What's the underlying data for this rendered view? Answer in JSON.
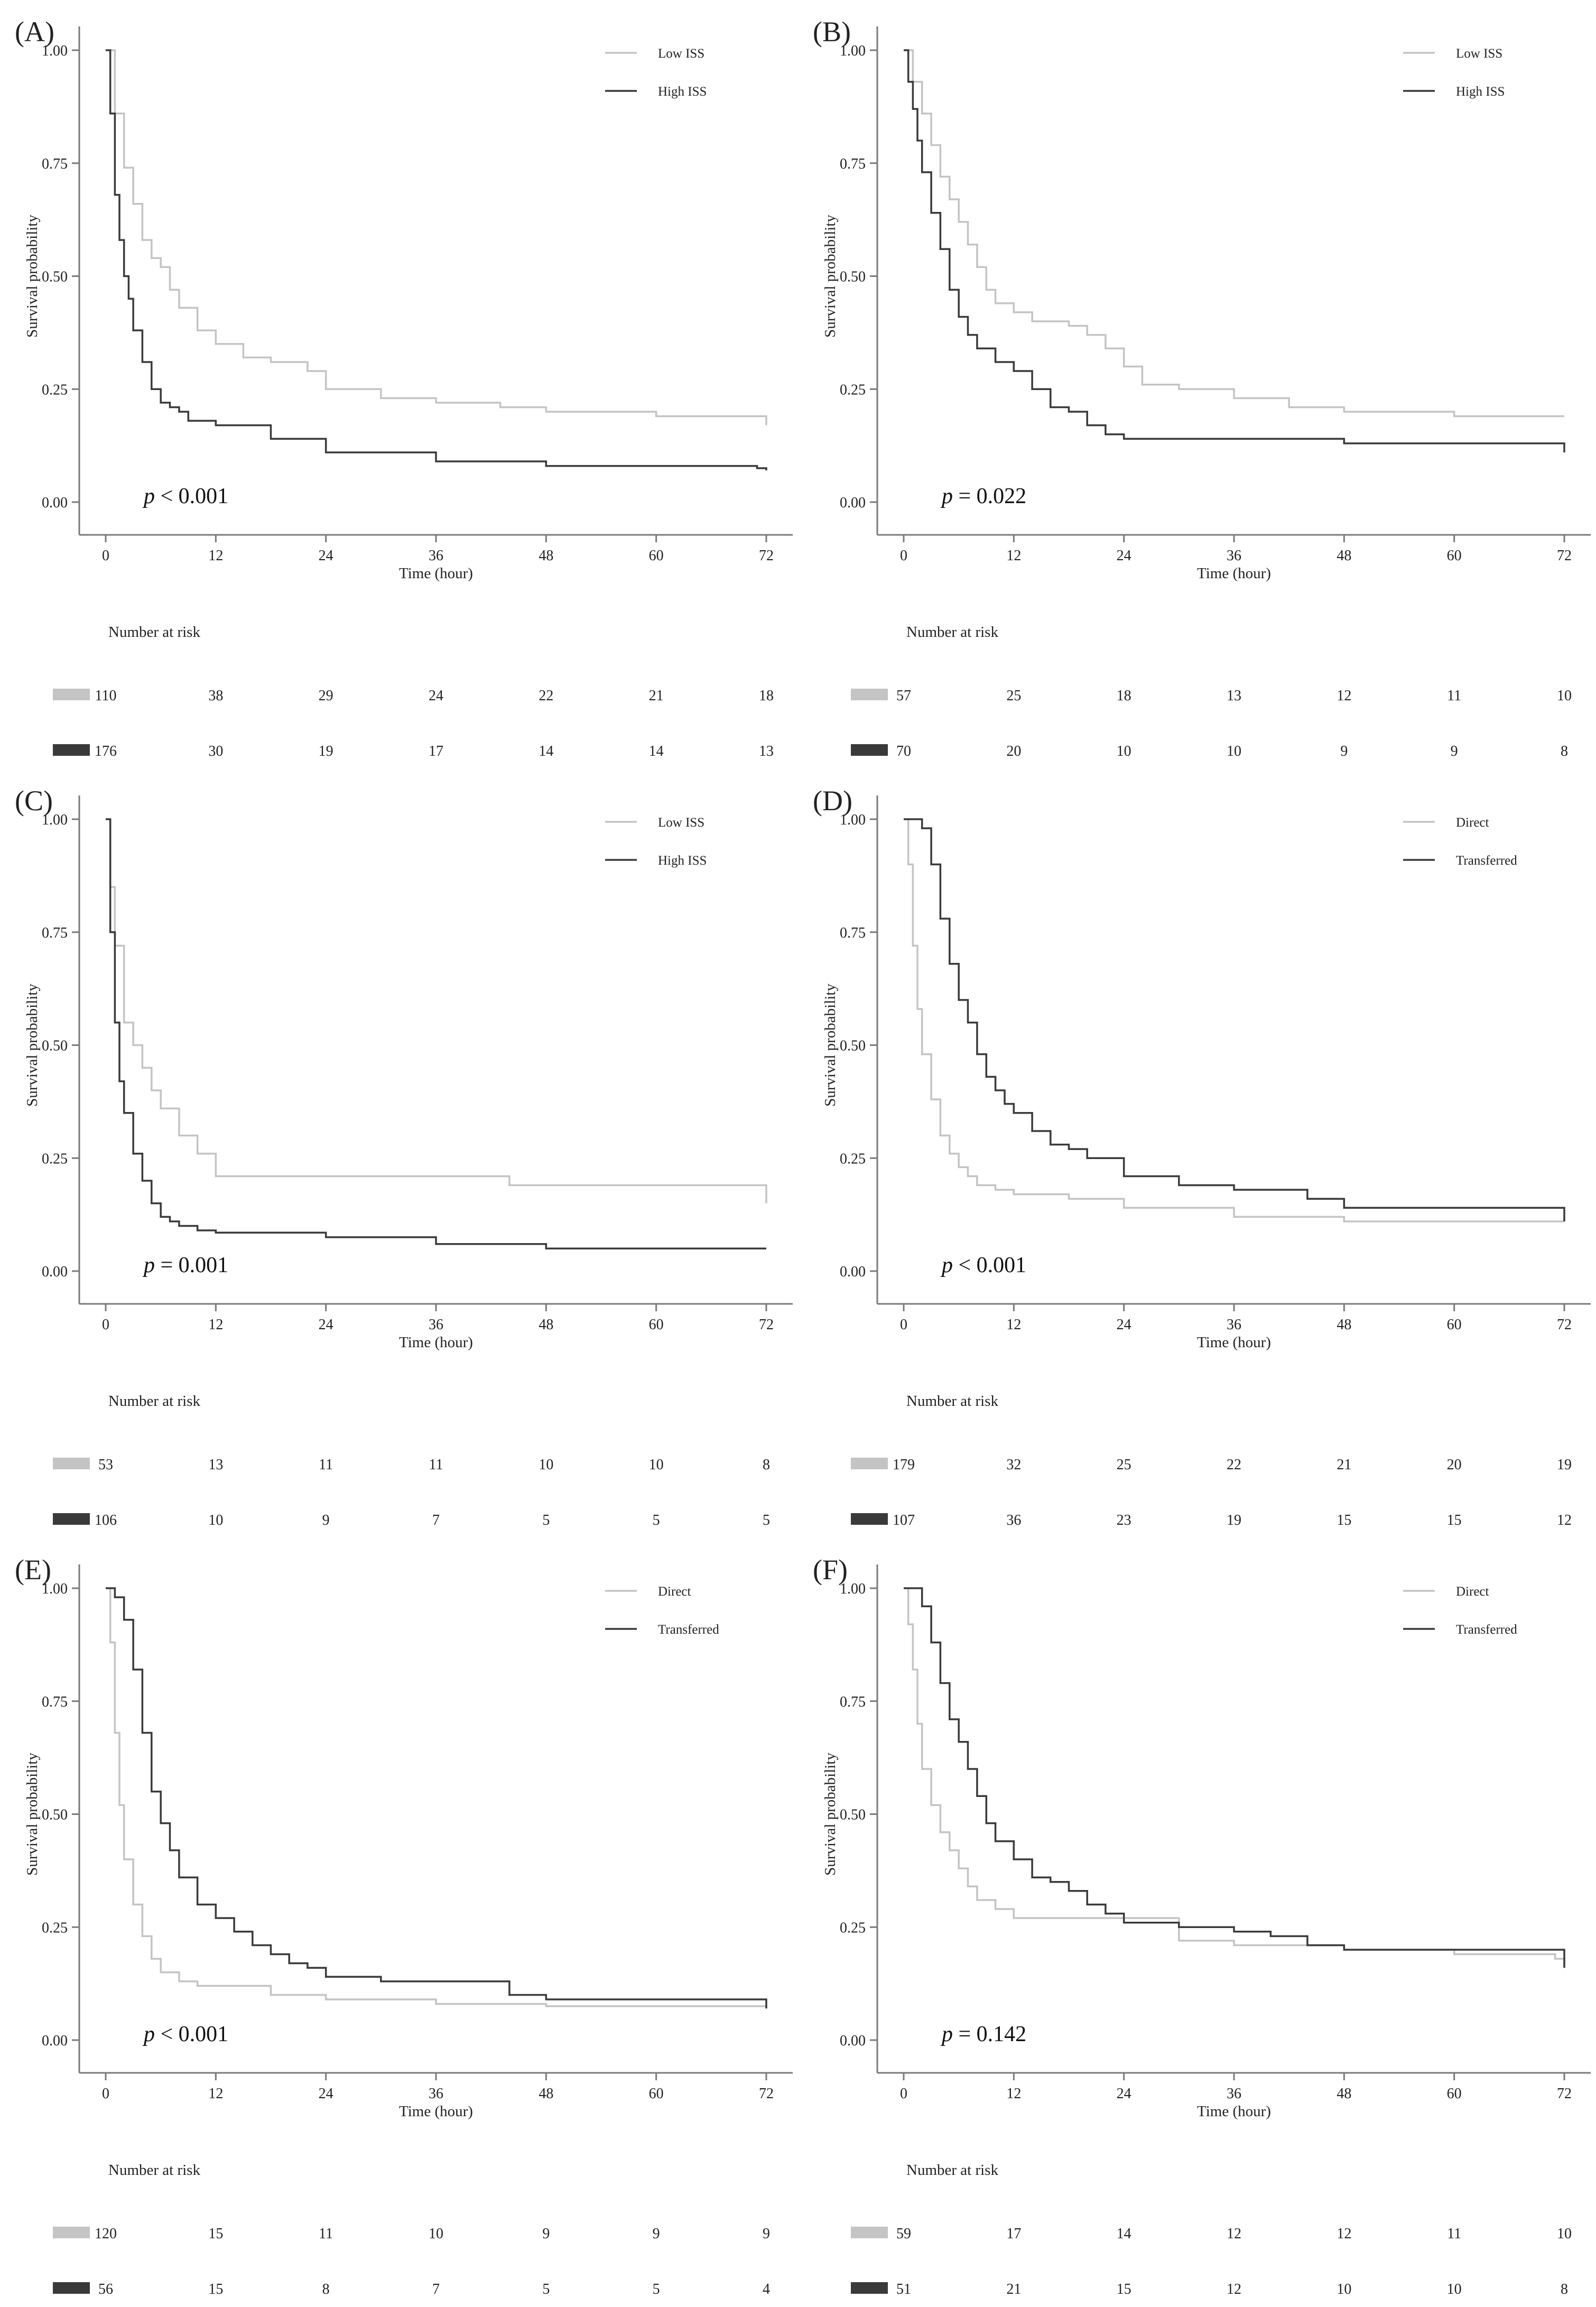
{
  "figure": {
    "risk_table_title": "Number at risk",
    "p_prefix": "p"
  },
  "colors": {
    "group1": "#c4c4c4",
    "group2": "#3a3a3a",
    "axis": "#7a7a7a",
    "text": "#222222"
  },
  "chart_data": [
    {
      "type": "line",
      "panel_label": "(A)",
      "xlabel": "Time (hour)",
      "ylabel": "Survival probability",
      "xlim": [
        0,
        72
      ],
      "ylim": [
        0,
        1
      ],
      "xticks": [
        "0",
        "12",
        "24",
        "36",
        "48",
        "60",
        "72"
      ],
      "yticks": [
        "0.00",
        "0.25",
        "0.50",
        "0.75",
        "1.00"
      ],
      "p_value": "< 0.001",
      "legend": [
        "Low ISS",
        "High ISS"
      ],
      "legend_position": "top-right",
      "series": [
        {
          "name": "Low ISS",
          "x": [
            0,
            1,
            2,
            3,
            4,
            5,
            6,
            7,
            8,
            10,
            12,
            15,
            18,
            22,
            24,
            30,
            36,
            43,
            48,
            60,
            71.5,
            72
          ],
          "y": [
            1.0,
            0.86,
            0.74,
            0.66,
            0.58,
            0.54,
            0.52,
            0.47,
            0.43,
            0.38,
            0.35,
            0.32,
            0.31,
            0.29,
            0.25,
            0.23,
            0.22,
            0.21,
            0.2,
            0.19,
            0.19,
            0.17
          ]
        },
        {
          "name": "High ISS",
          "x": [
            0,
            0.5,
            1,
            1.5,
            2,
            2.5,
            3,
            4,
            5,
            6,
            7,
            8,
            9,
            12,
            18,
            24,
            36,
            48,
            60,
            71,
            72
          ],
          "y": [
            1.0,
            0.86,
            0.68,
            0.58,
            0.5,
            0.45,
            0.38,
            0.31,
            0.25,
            0.22,
            0.21,
            0.2,
            0.18,
            0.17,
            0.14,
            0.11,
            0.09,
            0.08,
            0.08,
            0.075,
            0.07
          ]
        }
      ],
      "risk_table": [
        {
          "name": "Low ISS",
          "counts": [
            110,
            38,
            29,
            24,
            22,
            21,
            18
          ]
        },
        {
          "name": "High ISS",
          "counts": [
            176,
            30,
            19,
            17,
            14,
            14,
            13
          ]
        }
      ]
    },
    {
      "type": "line",
      "panel_label": "(B)",
      "xlabel": "Time (hour)",
      "ylabel": "Survival probability",
      "xlim": [
        0,
        72
      ],
      "ylim": [
        0,
        1
      ],
      "xticks": [
        "0",
        "12",
        "24",
        "36",
        "48",
        "60",
        "72"
      ],
      "yticks": [
        "0.00",
        "0.25",
        "0.50",
        "0.75",
        "1.00"
      ],
      "p_value": "= 0.022",
      "legend": [
        "Low ISS",
        "High ISS"
      ],
      "legend_position": "top-right",
      "series": [
        {
          "name": "Low ISS",
          "x": [
            0,
            1,
            2,
            3,
            4,
            5,
            6,
            7,
            8,
            9,
            10,
            12,
            14,
            16,
            18,
            20,
            22,
            24,
            26,
            30,
            36,
            42,
            48,
            60,
            72
          ],
          "y": [
            1.0,
            0.93,
            0.86,
            0.79,
            0.72,
            0.67,
            0.62,
            0.57,
            0.52,
            0.47,
            0.44,
            0.42,
            0.4,
            0.4,
            0.39,
            0.37,
            0.34,
            0.3,
            0.26,
            0.25,
            0.23,
            0.21,
            0.2,
            0.19,
            0.19
          ]
        },
        {
          "name": "High ISS",
          "x": [
            0,
            0.5,
            1,
            1.5,
            2,
            3,
            4,
            5,
            6,
            7,
            8,
            10,
            12,
            14,
            16,
            18,
            20,
            22,
            24,
            30,
            36,
            48,
            60,
            70,
            72
          ],
          "y": [
            1.0,
            0.93,
            0.87,
            0.8,
            0.73,
            0.64,
            0.56,
            0.47,
            0.41,
            0.37,
            0.34,
            0.31,
            0.29,
            0.25,
            0.21,
            0.2,
            0.17,
            0.15,
            0.14,
            0.14,
            0.14,
            0.13,
            0.13,
            0.13,
            0.11
          ]
        }
      ],
      "risk_table": [
        {
          "name": "Low ISS",
          "counts": [
            57,
            25,
            18,
            13,
            12,
            11,
            10
          ]
        },
        {
          "name": "High ISS",
          "counts": [
            70,
            20,
            10,
            10,
            9,
            9,
            8
          ]
        }
      ]
    },
    {
      "type": "line",
      "panel_label": "(C)",
      "xlabel": "Time (hour)",
      "ylabel": "Survival probability",
      "xlim": [
        0,
        72
      ],
      "ylim": [
        0,
        1
      ],
      "xticks": [
        "0",
        "12",
        "24",
        "36",
        "48",
        "60",
        "72"
      ],
      "yticks": [
        "0.00",
        "0.25",
        "0.50",
        "0.75",
        "1.00"
      ],
      "p_value": "= 0.001",
      "legend": [
        "Low ISS",
        "High ISS"
      ],
      "legend_position": "top-right",
      "series": [
        {
          "name": "Low ISS",
          "x": [
            0,
            0.5,
            1,
            2,
            3,
            4,
            5,
            6,
            8,
            10,
            12,
            18,
            24,
            30,
            36,
            44,
            48,
            60,
            71.5,
            72
          ],
          "y": [
            1.0,
            0.85,
            0.72,
            0.55,
            0.5,
            0.45,
            0.4,
            0.36,
            0.3,
            0.26,
            0.21,
            0.21,
            0.21,
            0.21,
            0.21,
            0.19,
            0.19,
            0.19,
            0.19,
            0.15
          ]
        },
        {
          "name": "High ISS",
          "x": [
            0,
            0.5,
            1,
            1.5,
            2,
            3,
            4,
            5,
            6,
            7,
            8,
            10,
            12,
            24,
            36,
            48,
            60,
            72
          ],
          "y": [
            1.0,
            0.75,
            0.55,
            0.42,
            0.35,
            0.26,
            0.2,
            0.15,
            0.12,
            0.11,
            0.1,
            0.09,
            0.085,
            0.075,
            0.06,
            0.05,
            0.05,
            0.05
          ]
        }
      ],
      "risk_table": [
        {
          "name": "Low ISS",
          "counts": [
            53,
            13,
            11,
            11,
            10,
            10,
            8
          ]
        },
        {
          "name": "High ISS",
          "counts": [
            106,
            10,
            9,
            7,
            5,
            5,
            5
          ]
        }
      ]
    },
    {
      "type": "line",
      "panel_label": "(D)",
      "xlabel": "Time (hour)",
      "ylabel": "Survival probability",
      "xlim": [
        0,
        72
      ],
      "ylim": [
        0,
        1
      ],
      "xticks": [
        "0",
        "12",
        "24",
        "36",
        "48",
        "60",
        "72"
      ],
      "yticks": [
        "0.00",
        "0.25",
        "0.50",
        "0.75",
        "1.00"
      ],
      "p_value": "< 0.001",
      "legend": [
        "Direct",
        "Transferred"
      ],
      "legend_position": "top-right",
      "series": [
        {
          "name": "Direct",
          "x": [
            0,
            0.5,
            1,
            1.5,
            2,
            3,
            4,
            5,
            6,
            7,
            8,
            10,
            12,
            18,
            24,
            36,
            48,
            60,
            72
          ],
          "y": [
            1.0,
            0.9,
            0.72,
            0.58,
            0.48,
            0.38,
            0.3,
            0.26,
            0.23,
            0.21,
            0.19,
            0.18,
            0.17,
            0.16,
            0.14,
            0.12,
            0.11,
            0.11,
            0.11
          ]
        },
        {
          "name": "Transferred",
          "x": [
            0,
            1,
            2,
            3,
            4,
            5,
            6,
            7,
            8,
            9,
            10,
            11,
            12,
            14,
            16,
            18,
            20,
            24,
            30,
            36,
            40,
            44,
            48,
            60,
            70,
            72
          ],
          "y": [
            1.0,
            1.0,
            0.98,
            0.9,
            0.78,
            0.68,
            0.6,
            0.55,
            0.48,
            0.43,
            0.4,
            0.37,
            0.35,
            0.31,
            0.28,
            0.27,
            0.25,
            0.21,
            0.19,
            0.18,
            0.18,
            0.16,
            0.14,
            0.14,
            0.14,
            0.11
          ]
        }
      ],
      "risk_table": [
        {
          "name": "Direct",
          "counts": [
            179,
            32,
            25,
            22,
            21,
            20,
            19
          ]
        },
        {
          "name": "Transferred",
          "counts": [
            107,
            36,
            23,
            19,
            15,
            15,
            12
          ]
        }
      ]
    },
    {
      "type": "line",
      "panel_label": "(E)",
      "xlabel": "Time (hour)",
      "ylabel": "Survival probability",
      "xlim": [
        0,
        72
      ],
      "ylim": [
        0,
        1
      ],
      "xticks": [
        "0",
        "12",
        "24",
        "36",
        "48",
        "60",
        "72"
      ],
      "yticks": [
        "0.00",
        "0.25",
        "0.50",
        "0.75",
        "1.00"
      ],
      "p_value": "< 0.001",
      "legend": [
        "Direct",
        "Transferred"
      ],
      "legend_position": "top-right",
      "series": [
        {
          "name": "Direct",
          "x": [
            0,
            0.5,
            1,
            1.5,
            2,
            3,
            4,
            5,
            6,
            8,
            10,
            12,
            18,
            24,
            36,
            48,
            60,
            72
          ],
          "y": [
            1.0,
            0.88,
            0.68,
            0.52,
            0.4,
            0.3,
            0.23,
            0.18,
            0.15,
            0.13,
            0.12,
            0.12,
            0.1,
            0.09,
            0.08,
            0.075,
            0.075,
            0.07
          ]
        },
        {
          "name": "Transferred",
          "x": [
            0,
            1,
            2,
            3,
            4,
            5,
            6,
            7,
            8,
            10,
            12,
            14,
            16,
            18,
            20,
            22,
            24,
            30,
            36,
            44,
            48,
            60,
            71,
            72
          ],
          "y": [
            1.0,
            0.98,
            0.93,
            0.82,
            0.68,
            0.55,
            0.48,
            0.42,
            0.36,
            0.3,
            0.27,
            0.24,
            0.21,
            0.19,
            0.17,
            0.16,
            0.14,
            0.13,
            0.13,
            0.1,
            0.09,
            0.09,
            0.09,
            0.07
          ]
        }
      ],
      "risk_table": [
        {
          "name": "Direct",
          "counts": [
            120,
            15,
            11,
            10,
            9,
            9,
            9
          ]
        },
        {
          "name": "Transferred",
          "counts": [
            56,
            15,
            8,
            7,
            5,
            5,
            4
          ]
        }
      ]
    },
    {
      "type": "line",
      "panel_label": "(F)",
      "xlabel": "Time (hour)",
      "ylabel": "Survival probability",
      "xlim": [
        0,
        72
      ],
      "ylim": [
        0,
        1
      ],
      "xticks": [
        "0",
        "12",
        "24",
        "36",
        "48",
        "60",
        "72"
      ],
      "yticks": [
        "0.00",
        "0.25",
        "0.50",
        "0.75",
        "1.00"
      ],
      "p_value": "= 0.142",
      "legend": [
        "Direct",
        "Transferred"
      ],
      "legend_position": "top-right",
      "series": [
        {
          "name": "Direct",
          "x": [
            0,
            0.5,
            1,
            1.5,
            2,
            3,
            4,
            5,
            6,
            7,
            8,
            10,
            12,
            18,
            24,
            30,
            36,
            48,
            60,
            71,
            72
          ],
          "y": [
            1.0,
            0.92,
            0.82,
            0.7,
            0.6,
            0.52,
            0.46,
            0.42,
            0.38,
            0.34,
            0.31,
            0.29,
            0.27,
            0.27,
            0.27,
            0.22,
            0.21,
            0.2,
            0.19,
            0.18,
            0.16
          ]
        },
        {
          "name": "Transferred",
          "x": [
            0,
            1,
            2,
            3,
            4,
            5,
            6,
            7,
            8,
            9,
            10,
            12,
            14,
            16,
            18,
            20,
            22,
            24,
            30,
            36,
            40,
            44,
            48,
            60,
            71,
            72
          ],
          "y": [
            1.0,
            1.0,
            0.96,
            0.88,
            0.79,
            0.71,
            0.66,
            0.6,
            0.54,
            0.48,
            0.44,
            0.4,
            0.36,
            0.35,
            0.33,
            0.3,
            0.28,
            0.26,
            0.25,
            0.24,
            0.23,
            0.21,
            0.2,
            0.2,
            0.2,
            0.16
          ]
        }
      ],
      "risk_table": [
        {
          "name": "Direct",
          "counts": [
            59,
            17,
            14,
            12,
            12,
            11,
            10
          ]
        },
        {
          "name": "Transferred",
          "counts": [
            51,
            21,
            15,
            12,
            10,
            10,
            8
          ]
        }
      ]
    }
  ]
}
